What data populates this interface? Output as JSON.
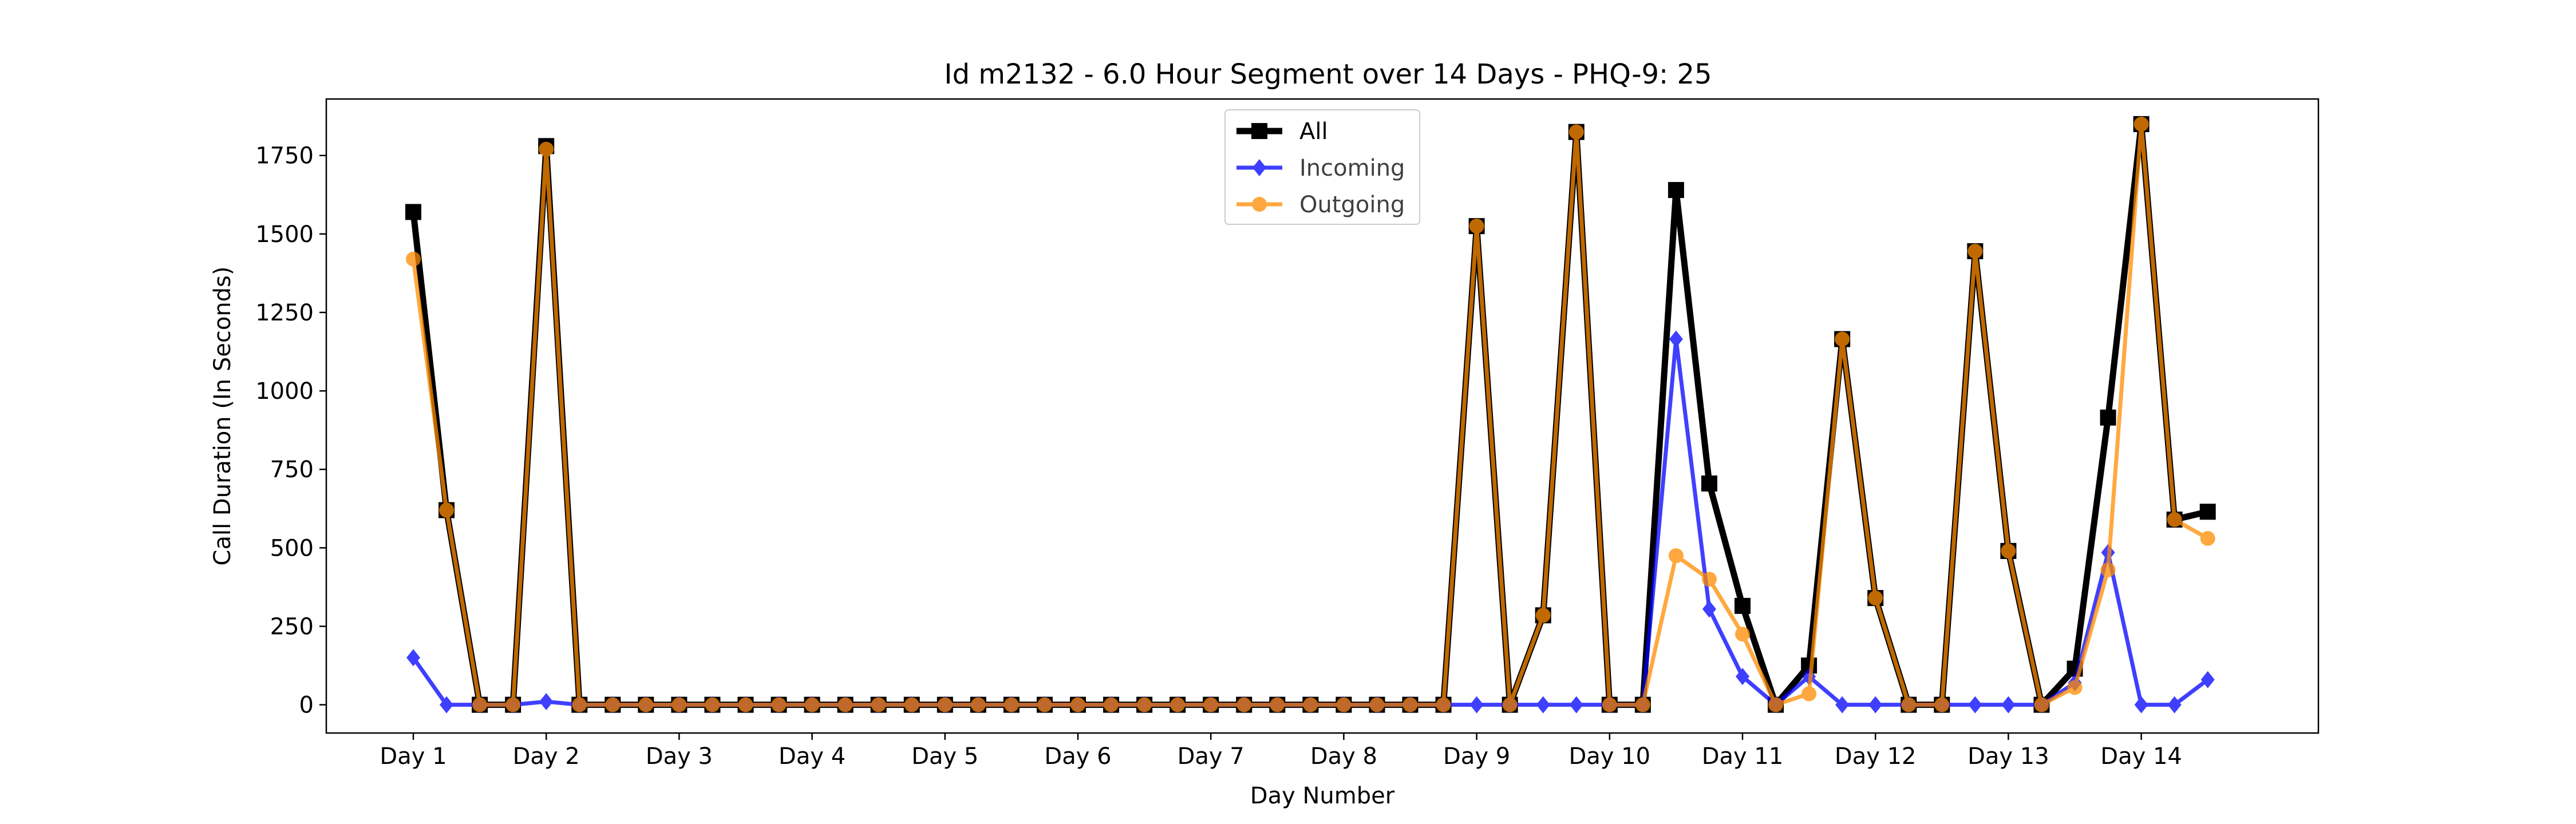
{
  "chart_data": {
    "type": "line",
    "title": "Id m2132 - 6.0 Hour Segment over 14 Days - PHQ-9: 25",
    "xlabel": "Day Number",
    "ylabel": "Call Duration (In Seconds)",
    "x_tick_labels": [
      "Day 1",
      "Day 2",
      "Day 3",
      "Day 4",
      "Day 5",
      "Day 6",
      "Day 7",
      "Day 8",
      "Day 9",
      "Day 10",
      "Day 11",
      "Day 12",
      "Day 13",
      "Day 14"
    ],
    "y_ticks": [
      0,
      250,
      500,
      750,
      1000,
      1250,
      1500,
      1750
    ],
    "ylim": [
      -90,
      1930
    ],
    "legend_position": "top-center",
    "grid": false,
    "series": [
      {
        "name": "All",
        "color": "#000000",
        "marker": "square",
        "values": [
          1570,
          620,
          0,
          0,
          1780,
          0,
          0,
          0,
          0,
          0,
          0,
          0,
          0,
          0,
          0,
          0,
          0,
          0,
          0,
          0,
          0,
          0,
          0,
          0,
          0,
          0,
          0,
          0,
          0,
          0,
          0,
          0,
          1525,
          0,
          285,
          1825,
          0,
          0,
          1640,
          705,
          315,
          0,
          125,
          1165,
          340,
          0,
          0,
          1445,
          490,
          0,
          115,
          915,
          1850,
          590,
          615
        ]
      },
      {
        "name": "Incoming",
        "color": "#0000ff",
        "marker": "diamond",
        "values": [
          150,
          0,
          0,
          0,
          10,
          0,
          0,
          0,
          0,
          0,
          0,
          0,
          0,
          0,
          0,
          0,
          0,
          0,
          0,
          0,
          0,
          0,
          0,
          0,
          0,
          0,
          0,
          0,
          0,
          0,
          0,
          0,
          0,
          0,
          0,
          0,
          0,
          0,
          1165,
          305,
          90,
          0,
          90,
          0,
          0,
          0,
          0,
          0,
          0,
          0,
          70,
          485,
          0,
          0,
          80
        ]
      },
      {
        "name": "Outgoing",
        "color": "#ff8c00",
        "marker": "circle",
        "values": [
          1420,
          620,
          0,
          0,
          1770,
          0,
          0,
          0,
          0,
          0,
          0,
          0,
          0,
          0,
          0,
          0,
          0,
          0,
          0,
          0,
          0,
          0,
          0,
          0,
          0,
          0,
          0,
          0,
          0,
          0,
          0,
          0,
          1525,
          0,
          285,
          1825,
          0,
          0,
          475,
          400,
          225,
          0,
          35,
          1165,
          340,
          0,
          0,
          1445,
          490,
          0,
          55,
          430,
          1850,
          590,
          530
        ]
      }
    ]
  }
}
